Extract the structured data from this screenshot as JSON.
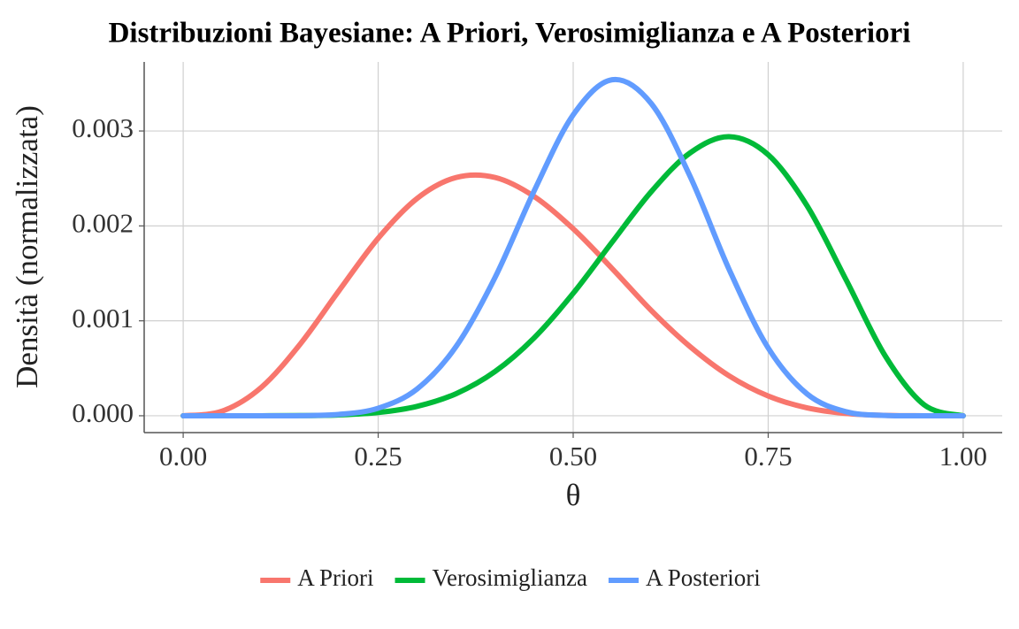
{
  "chart_data": {
    "type": "line",
    "title": "Distribuzioni Bayesiane: A Priori, Verosimiglianza e A Posteriori",
    "x_label": "θ",
    "y_label": "Densità (normalizzata)",
    "x": [
      0,
      0.05,
      0.1,
      0.15,
      0.2,
      0.25,
      0.3,
      0.35,
      0.4,
      0.45,
      0.5,
      0.55,
      0.6,
      0.65,
      0.7,
      0.75,
      0.8,
      0.85,
      0.9,
      0.95,
      1
    ],
    "series": [
      {
        "name": "A Priori",
        "color": "#f8766d",
        "values": [
          0,
          4.87e-05,
          0.000298,
          0.000755,
          0.00132,
          0.00187,
          0.00229,
          0.00251,
          0.00251,
          0.00231,
          0.00197,
          0.00155,
          0.00111,
          0.000727,
          0.00042,
          0.000208,
          8.26e-05,
          2.35e-05,
          3.7e-06,
          1e-07,
          0
        ]
      },
      {
        "name": "Verosimiglianza",
        "color": "#00ba38",
        "values": [
          0,
          0,
          1e-07,
          1.4e-06,
          8.7e-06,
          3.4e-05,
          9.9e-05,
          0.000233,
          0.000467,
          0.000821,
          0.00129,
          0.00183,
          0.00236,
          0.00277,
          0.00294,
          0.00275,
          0.00221,
          0.00143,
          0.000631,
          0.000115,
          0
        ]
      },
      {
        "name": "A Posteriori",
        "color": "#619cff",
        "values": [
          0,
          0,
          0,
          1.3e-06,
          1.43e-05,
          7.94e-05,
          0.000283,
          0.000731,
          0.00146,
          0.00237,
          0.00317,
          0.00354,
          0.00329,
          0.00252,
          0.00154,
          0.000714,
          0.000229,
          4.2e-05,
          2.9e-06,
          0,
          0
        ]
      }
    ],
    "xlim": [
      -0.05,
      1.05
    ],
    "ylim": [
      -0.0001775,
      0.0037275
    ],
    "xticks": [
      {
        "value": 0,
        "label": "0.00"
      },
      0.25,
      {
        "value": 0.5,
        "label": "0.50"
      },
      0.75,
      {
        "value": 1,
        "label": "1.00"
      }
    ],
    "yticks": [
      {
        "value": 0,
        "label": "0.000"
      },
      0.001,
      0.002,
      0.003
    ],
    "grid": true,
    "legend": "bottom"
  }
}
